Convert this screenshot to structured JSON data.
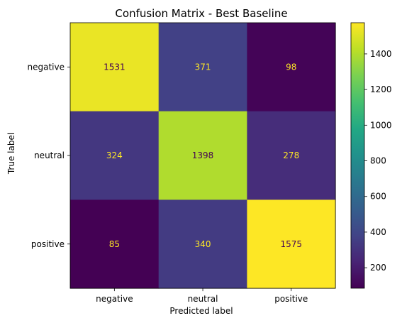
{
  "chart_data": {
    "type": "heatmap",
    "title": "Confusion Matrix - Best Baseline",
    "xlabel": "Predicted label",
    "ylabel": "True label",
    "x_categories": [
      "negative",
      "neutral",
      "positive"
    ],
    "y_categories": [
      "negative",
      "neutral",
      "positive"
    ],
    "values": [
      [
        1531,
        371,
        98
      ],
      [
        324,
        1398,
        278
      ],
      [
        85,
        340,
        1575
      ]
    ],
    "colormap": "viridis",
    "colorbar": {
      "range": [
        85,
        1575
      ],
      "ticks": [
        200,
        400,
        600,
        800,
        1000,
        1200,
        1400
      ]
    },
    "text_colors": {
      "on_dark": "#fde725",
      "on_light": "#440154"
    }
  }
}
